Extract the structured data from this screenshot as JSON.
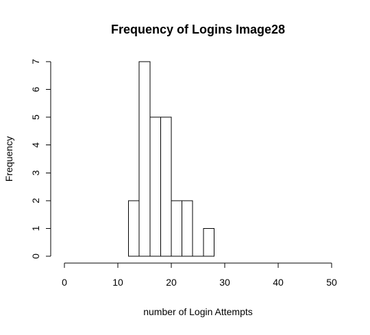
{
  "chart_data": {
    "type": "bar",
    "title": "Frequency of Logins  Image28",
    "xlabel": "number of Login Attempts",
    "ylabel": "Frequency",
    "xlim": [
      0,
      50
    ],
    "ylim": [
      0,
      7
    ],
    "xticks": [
      "0",
      "10",
      "20",
      "30",
      "40",
      "50"
    ],
    "yticks": [
      "0",
      "1",
      "2",
      "3",
      "4",
      "5",
      "6",
      "7"
    ],
    "bins": [
      {
        "start": 12,
        "end": 14,
        "count": 2
      },
      {
        "start": 14,
        "end": 16,
        "count": 7
      },
      {
        "start": 16,
        "end": 18,
        "count": 5
      },
      {
        "start": 18,
        "end": 20,
        "count": 5
      },
      {
        "start": 20,
        "end": 22,
        "count": 2
      },
      {
        "start": 22,
        "end": 24,
        "count": 2
      },
      {
        "start": 24,
        "end": 26,
        "count": 0
      },
      {
        "start": 26,
        "end": 28,
        "count": 1
      }
    ],
    "grid": false,
    "legend": "none",
    "bar_fill": "#ffffff",
    "bar_stroke": "#000000"
  }
}
